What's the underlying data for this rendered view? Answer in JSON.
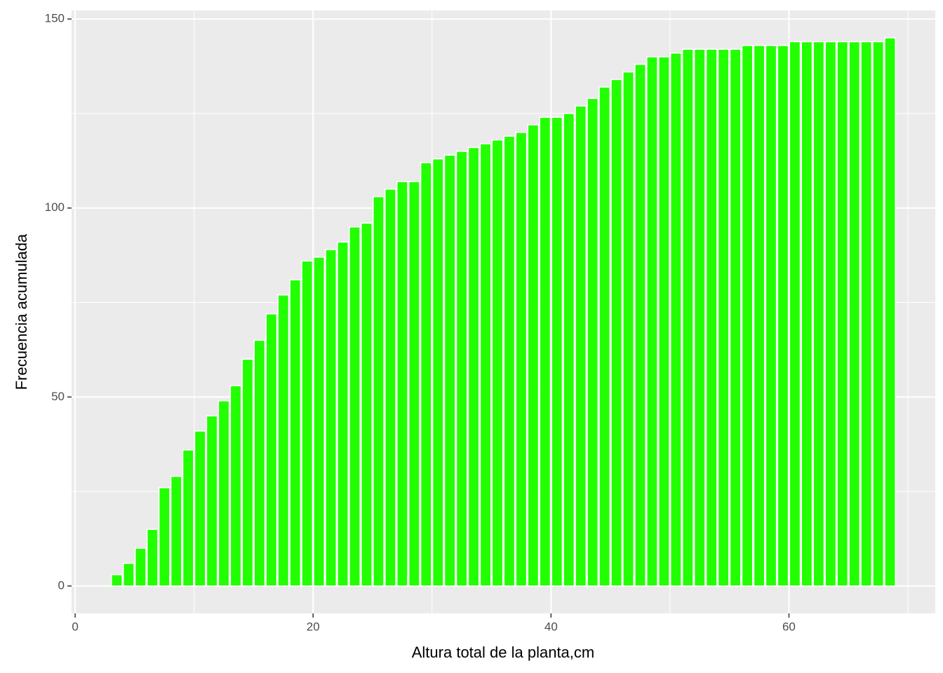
{
  "chart_data": {
    "type": "bar",
    "x_label": "Altura total de la planta,cm",
    "y_label": "Frecuencia acumulada",
    "x": [
      3.5,
      4.5,
      5.5,
      6.5,
      7.5,
      8.5,
      9.5,
      10.5,
      11.5,
      12.5,
      13.5,
      14.5,
      15.5,
      16.5,
      17.5,
      18.5,
      19.5,
      20.5,
      21.5,
      22.5,
      23.5,
      24.5,
      25.5,
      26.5,
      27.5,
      28.5,
      29.5,
      30.5,
      31.5,
      32.5,
      33.5,
      34.5,
      35.5,
      36.5,
      37.5,
      38.5,
      39.5,
      40.5,
      41.5,
      42.5,
      43.5,
      44.5,
      45.5,
      46.5,
      47.5,
      48.5,
      49.5,
      50.5,
      51.5,
      52.5,
      53.5,
      54.5,
      55.5,
      56.5,
      57.5,
      58.5,
      59.5,
      60.5,
      61.5,
      62.5,
      63.5,
      64.5,
      65.5,
      66.5,
      67.5,
      68.5
    ],
    "values": [
      3,
      6,
      10,
      15,
      26,
      29,
      36,
      41,
      45,
      49,
      53,
      60,
      65,
      72,
      77,
      81,
      86,
      87,
      89,
      91,
      95,
      96,
      103,
      105,
      107,
      107,
      112,
      113,
      114,
      115,
      116,
      117,
      118,
      119,
      120,
      122,
      124,
      124,
      125,
      127,
      129,
      132,
      134,
      136,
      138,
      140,
      140,
      141,
      142,
      142,
      142,
      142,
      142,
      143,
      143,
      143,
      143,
      144,
      144,
      144,
      144,
      144,
      144,
      144,
      144,
      145
    ],
    "bar_width": 0.9,
    "color": "#22ff00",
    "xlim": [
      -0.3,
      72.3
    ],
    "xticks": [
      0,
      20,
      40,
      60
    ],
    "xminor": [
      10,
      30,
      50,
      70
    ],
    "ylim": [
      -7.25,
      152.25
    ],
    "yticks": [
      0,
      50,
      100,
      150
    ],
    "yminor": [
      25,
      75,
      125
    ],
    "grid": true
  }
}
